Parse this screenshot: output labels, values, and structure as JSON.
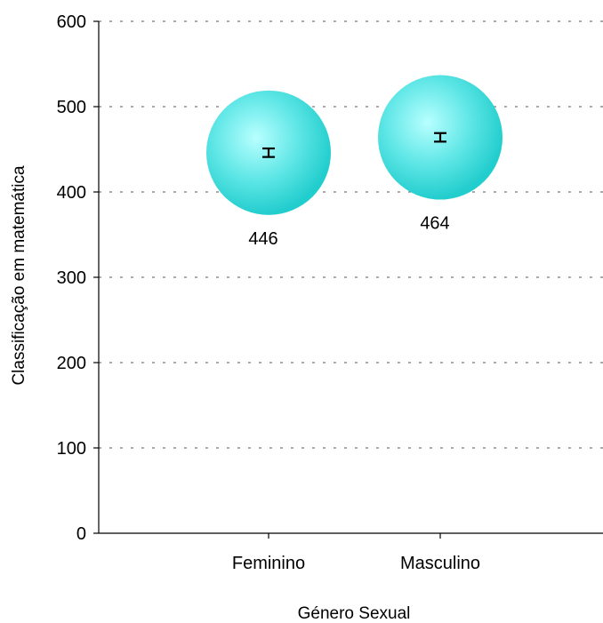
{
  "chart_data": {
    "type": "scatter",
    "title": "",
    "xlabel": "Género Sexual",
    "ylabel": "Classificação em matemática",
    "ylim": [
      0,
      600
    ],
    "yticks": [
      0,
      100,
      200,
      300,
      400,
      500,
      600
    ],
    "grid": true,
    "categories": [
      "Feminino",
      "Masculino"
    ],
    "values": [
      446,
      464
    ],
    "data_labels": [
      "446",
      "464"
    ],
    "error": [
      5,
      5
    ],
    "marker_color": "#22CDCD",
    "marker_highlight": "#B8FFFF"
  }
}
